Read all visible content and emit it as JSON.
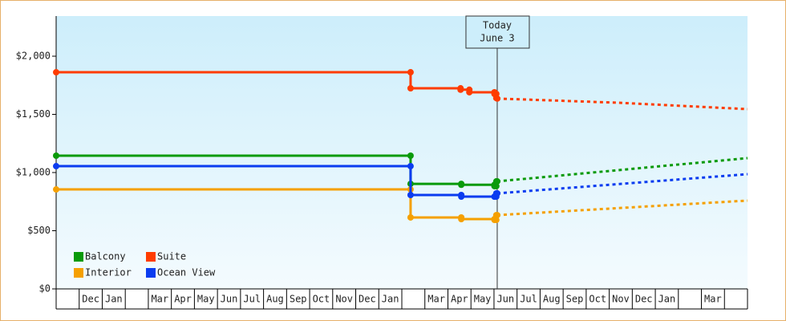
{
  "chart_data": {
    "type": "step-line",
    "categories": [
      null,
      "Dec",
      "Jan",
      null,
      "Mar",
      "Apr",
      "May",
      "Jun",
      "Jul",
      "Aug",
      "Sep",
      "Oct",
      "Nov",
      "Dec",
      "Jan",
      null,
      "Mar",
      "Apr",
      "May",
      "Jun",
      "Jul",
      "Aug",
      "Sep",
      "Oct",
      "Nov",
      "Dec",
      "Jan",
      null,
      "Mar",
      null
    ],
    "xlim": [
      0,
      30
    ],
    "ylim": [
      0,
      2345
    ],
    "yticks": [
      {
        "value": 0,
        "label": "$0"
      },
      {
        "value": 500,
        "label": "$500"
      },
      {
        "value": 1000,
        "label": "$1,000"
      },
      {
        "value": 1500,
        "label": "$1,500"
      },
      {
        "value": 2000,
        "label": "$2,000"
      }
    ],
    "series": [
      {
        "name": "Balcony",
        "color": "#0a9a0a",
        "x": [
          0,
          15.38,
          17.58,
          19.02,
          19.1
        ],
        "values": [
          1145,
          903,
          895,
          883,
          924
        ],
        "forecast": {
          "x": [
            19.14,
            30
          ],
          "values": [
            924,
            1124
          ]
        }
      },
      {
        "name": "Suite",
        "color": "#ff3c00",
        "x": [
          0,
          15.38,
          17.55,
          17.93,
          19.02,
          19.1
        ],
        "values": [
          1862,
          1724,
          1712,
          1690,
          1676,
          1640
        ],
        "forecast": {
          "x": [
            19.14,
            24.4,
            30
          ],
          "values": [
            1636,
            1600,
            1545
          ]
        }
      },
      {
        "name": "Interior",
        "color": "#f5a000",
        "x": [
          0,
          15.38,
          17.58,
          19.02,
          19.1
        ],
        "values": [
          855,
          614,
          600,
          593,
          634
        ],
        "forecast": {
          "x": [
            19.14,
            30
          ],
          "values": [
            634,
            759
          ]
        }
      },
      {
        "name": "Ocean View",
        "color": "#0a3cf0",
        "x": [
          0,
          15.38,
          17.58,
          19.02,
          19.1
        ],
        "values": [
          1055,
          807,
          793,
          793,
          821
        ],
        "forecast": {
          "x": [
            19.14,
            30
          ],
          "values": [
            821,
            986
          ]
        }
      }
    ],
    "annotation": {
      "x": 19.14,
      "lines": [
        "Today",
        "June 3"
      ]
    }
  }
}
